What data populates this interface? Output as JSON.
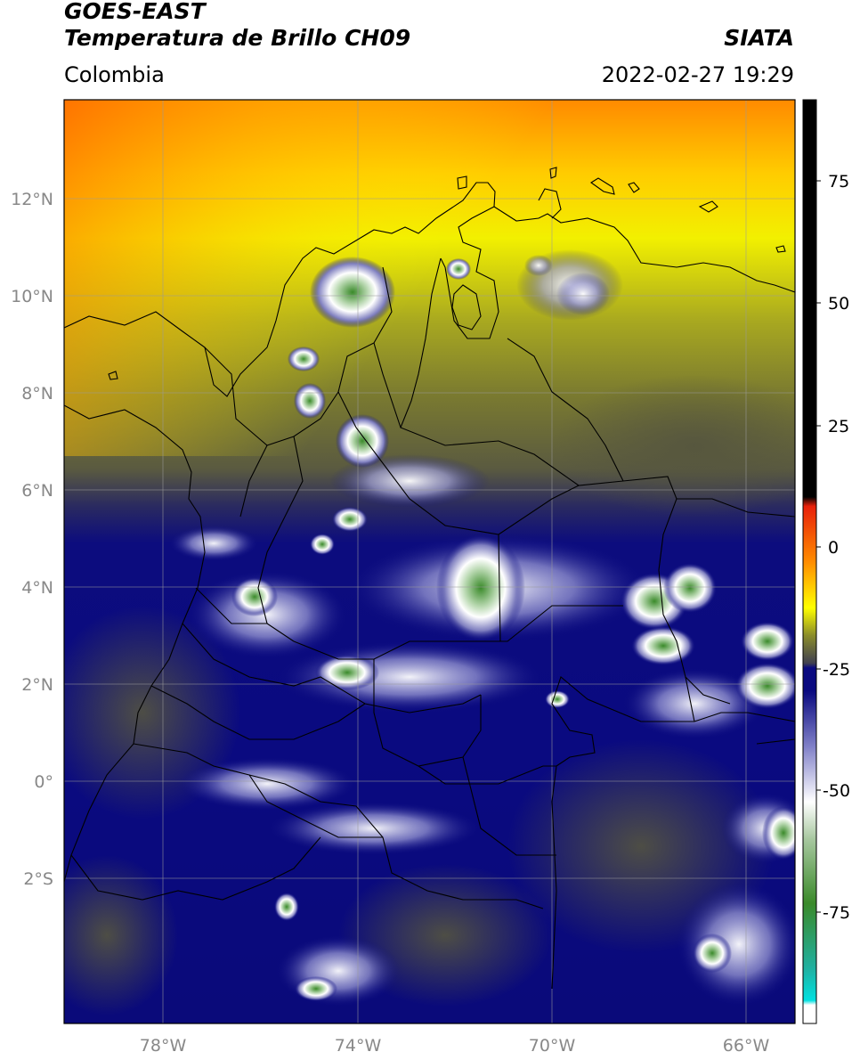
{
  "header": {
    "satellite": "GOES-EAST",
    "product": "Temperatura de Brillo CH09",
    "region": "Colombia",
    "source": "SIATA",
    "datetime": "2022-02-27 19:29"
  },
  "axes": {
    "lat_ticks": [
      "12°N",
      "10°N",
      "8°N",
      "6°N",
      "4°N",
      "2°N",
      "0°",
      "2°S"
    ],
    "lon_ticks": [
      "78°W",
      "74°W",
      "70°W",
      "66°W"
    ]
  },
  "colorbar": {
    "ticks": [
      "75",
      "50",
      "25",
      "0",
      "-25",
      "-50",
      "-75"
    ],
    "colors": {
      "black": "#000000",
      "red": "#e8200a",
      "orange": "#ff8c00",
      "yellow": "#ffff00",
      "olive": "#8a8c2a",
      "gray": "#4d4d3a",
      "navy": "#0a0a80",
      "white": "#ffffff",
      "green": "#3a8a2a",
      "cyan": "#00e0e0"
    }
  }
}
